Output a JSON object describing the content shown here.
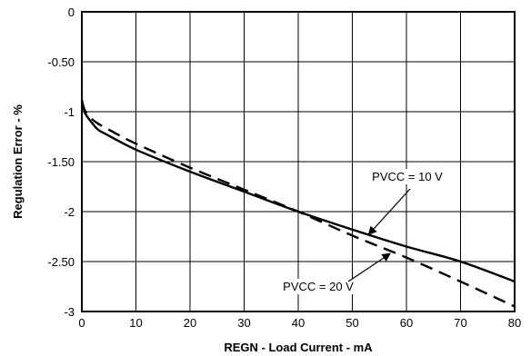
{
  "chart_data": {
    "type": "line",
    "title": "",
    "xlabel": "REGN - Load Current - mA",
    "ylabel": "Regulation Error - %",
    "xlim": [
      0,
      80
    ],
    "ylim": [
      -3,
      0
    ],
    "x_ticks": [
      "0",
      "10",
      "20",
      "30",
      "40",
      "50",
      "60",
      "70",
      "80"
    ],
    "y_ticks": [
      "0",
      "-0.50",
      "-1",
      "-1.50",
      "-2",
      "-2.50",
      "-3"
    ],
    "grid": true,
    "series": [
      {
        "name": "PVCC = 10 V",
        "style": "solid",
        "x": [
          0,
          0.5,
          1,
          2,
          3,
          5,
          10,
          20,
          30,
          40,
          50,
          60,
          70,
          80
        ],
        "y": [
          -0.88,
          -1.0,
          -1.05,
          -1.12,
          -1.18,
          -1.24,
          -1.38,
          -1.6,
          -1.8,
          -2.0,
          -2.18,
          -2.35,
          -2.5,
          -2.7
        ]
      },
      {
        "name": "PVCC = 20 V",
        "style": "dashed",
        "x": [
          0,
          0.5,
          1,
          2,
          3,
          5,
          10,
          20,
          30,
          40,
          50,
          60,
          70,
          80
        ],
        "y": [
          -0.9,
          -0.98,
          -1.02,
          -1.08,
          -1.12,
          -1.18,
          -1.32,
          -1.56,
          -1.78,
          -2.0,
          -2.24,
          -2.46,
          -2.7,
          -2.95
        ]
      }
    ],
    "annotations": [
      {
        "text": "PVCC = 10 V",
        "arrow_to": [
          53,
          -2.23
        ]
      },
      {
        "text": "PVCC = 20 V",
        "arrow_to": [
          57,
          -2.42
        ]
      }
    ]
  }
}
